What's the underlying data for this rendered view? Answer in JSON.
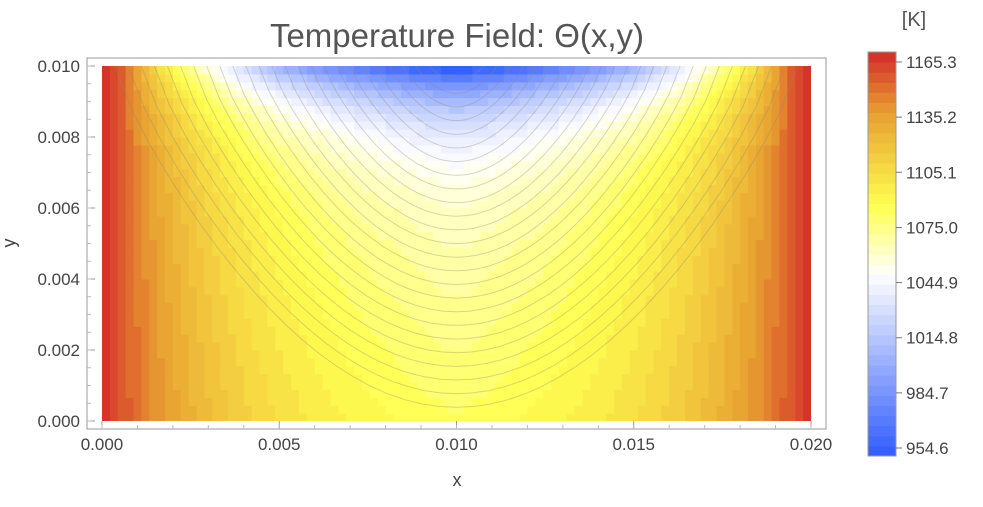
{
  "chart_data": {
    "type": "heatmap",
    "title": "Temperature Field: Θ(x,y)",
    "xlabel": "x",
    "ylabel": "y",
    "xlim": [
      0.0,
      0.02
    ],
    "ylim": [
      0.0,
      0.01
    ],
    "x_ticks": [
      "0.000",
      "0.005",
      "0.010",
      "0.015",
      "0.020"
    ],
    "y_ticks": [
      "0.000",
      "0.002",
      "0.004",
      "0.006",
      "0.008",
      "0.010"
    ],
    "colorbar": {
      "unit_label": "[K]",
      "range": [
        954.6,
        1165.3
      ],
      "ticks": [
        "954.6",
        "984.7",
        "1014.8",
        "1044.9",
        "1075.0",
        "1105.1",
        "1135.2",
        "1165.3"
      ],
      "colors": [
        "#2f5bff",
        "#ffffff",
        "#ffff50",
        "#e8a030",
        "#d42a2a"
      ]
    },
    "field": {
      "description": "hot side walls, cold top wall, warm bottom",
      "contour_levels": 40,
      "samples": [
        {
          "x": 0.0,
          "y": 0.0,
          "value": 1165.3
        },
        {
          "x": 0.01,
          "y": 0.01,
          "value": 954.6
        },
        {
          "x": 0.01,
          "y": 0.0,
          "value": 1072.0
        },
        {
          "x": 0.005,
          "y": 0.005,
          "value": 1090.0
        },
        {
          "x": 0.02,
          "y": 0.0,
          "value": 1165.3
        }
      ]
    }
  }
}
